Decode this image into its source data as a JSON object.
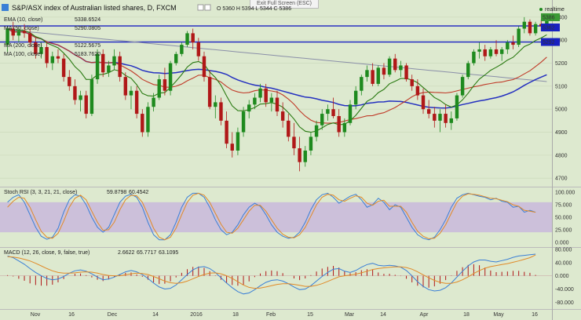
{
  "window": {
    "exit_fullscreen": "Exit Full Screen (ESC)",
    "realtime": "realtime"
  },
  "header": {
    "title": "S&P/ASX index of Australian listed shares, D, FXCM",
    "ohlc": "O 5360 H 5394 L 5344 C 5386"
  },
  "indicators": {
    "ema": {
      "label": "EMA (10, close)",
      "value": "5338.6524",
      "color": "#2a7a12"
    },
    "ma50": {
      "label": "MA (50, close)",
      "value": "5290.0805",
      "color": "#c03a28"
    },
    "ma200": {
      "label": "MA (200, close)",
      "value": "5122.5675",
      "color": "#8a8fa8"
    },
    "ma100": {
      "label": "MA (100, close)",
      "value": "5183.7620",
      "color": "#2430c0"
    }
  },
  "panes": {
    "rsi": {
      "label": "Stoch RSI (3, 3, 21, 21, close)",
      "k": "59.8798",
      "d": "60.4542"
    },
    "macd": {
      "label": "MACD (12, 26, close, 9, false, true)",
      "hist": "2.6622",
      "macd": "65.7717",
      "signal": "63.1095"
    }
  },
  "colors": {
    "up": "#1e8a1e",
    "down": "#b01818",
    "blue": "#3a7fd6",
    "orange": "#e08a28",
    "hline": "#1820c0"
  },
  "chart_data": [
    {
      "type": "candlestick",
      "title": "S&P/ASX index of Australian listed shares, D, FXCM",
      "x_ticks": [
        "Nov",
        "16",
        "Dec",
        "14",
        "2016",
        "18",
        "Feb",
        "15",
        "Mar",
        "14",
        "Apr",
        "18",
        "May",
        "16"
      ],
      "y_ticks": [
        4700,
        4800,
        4900,
        5000,
        5100,
        5200,
        5300,
        5400
      ],
      "ylim": [
        4670,
        5420
      ],
      "price_labels": [
        5386,
        5362,
        5292
      ],
      "candles": [
        [
          5280,
          5360,
          5250,
          5350
        ],
        [
          5350,
          5380,
          5300,
          5320
        ],
        [
          5320,
          5360,
          5290,
          5340
        ],
        [
          5340,
          5370,
          5310,
          5330
        ],
        [
          5330,
          5350,
          5270,
          5290
        ],
        [
          5290,
          5310,
          5220,
          5240
        ],
        [
          5240,
          5290,
          5220,
          5270
        ],
        [
          5270,
          5290,
          5180,
          5200
        ],
        [
          5200,
          5250,
          5170,
          5230
        ],
        [
          5230,
          5260,
          5200,
          5220
        ],
        [
          5220,
          5240,
          5120,
          5140
        ],
        [
          5140,
          5170,
          5080,
          5100
        ],
        [
          5100,
          5130,
          5020,
          5040
        ],
        [
          5040,
          5080,
          4990,
          5060
        ],
        [
          5060,
          5080,
          4960,
          4980
        ],
        [
          4980,
          5150,
          4970,
          5130
        ],
        [
          5130,
          5260,
          5110,
          5240
        ],
        [
          5240,
          5260,
          5140,
          5160
        ],
        [
          5160,
          5210,
          5140,
          5190
        ],
        [
          5190,
          5260,
          5170,
          5230
        ],
        [
          5230,
          5250,
          5120,
          5140
        ],
        [
          5140,
          5160,
          5040,
          5060
        ],
        [
          5060,
          5100,
          5000,
          5080
        ],
        [
          5080,
          5100,
          4960,
          4980
        ],
        [
          4980,
          5000,
          4880,
          4900
        ],
        [
          4900,
          5030,
          4880,
          5010
        ],
        [
          5010,
          5070,
          4990,
          5050
        ],
        [
          5050,
          5150,
          5040,
          5130
        ],
        [
          5130,
          5180,
          5060,
          5080
        ],
        [
          5080,
          5210,
          5060,
          5200
        ],
        [
          5200,
          5250,
          5190,
          5240
        ],
        [
          5240,
          5290,
          5230,
          5280
        ],
        [
          5280,
          5340,
          5270,
          5330
        ],
        [
          5330,
          5350,
          5260,
          5290
        ],
        [
          5290,
          5310,
          5210,
          5230
        ],
        [
          5230,
          5250,
          5120,
          5140
        ],
        [
          5140,
          5170,
          5000,
          5010
        ],
        [
          5010,
          5060,
          4960,
          5030
        ],
        [
          5030,
          5050,
          4930,
          4950
        ],
        [
          4950,
          4990,
          4830,
          4850
        ],
        [
          4850,
          4900,
          4790,
          4820
        ],
        [
          4820,
          4920,
          4800,
          4900
        ],
        [
          4900,
          5010,
          4880,
          4990
        ],
        [
          4990,
          5040,
          4960,
          5020
        ],
        [
          5020,
          5070,
          5000,
          5050
        ],
        [
          5050,
          5110,
          5030,
          5090
        ],
        [
          5090,
          5110,
          5010,
          5030
        ],
        [
          5030,
          5070,
          4990,
          5050
        ],
        [
          5050,
          5080,
          4970,
          4990
        ],
        [
          4990,
          5030,
          4920,
          4950
        ],
        [
          4950,
          4980,
          4860,
          4880
        ],
        [
          4880,
          4940,
          4800,
          4830
        ],
        [
          4830,
          4880,
          4730,
          4770
        ],
        [
          4770,
          4840,
          4750,
          4820
        ],
        [
          4820,
          4900,
          4800,
          4880
        ],
        [
          4880,
          4950,
          4860,
          4930
        ],
        [
          4930,
          5000,
          4910,
          4980
        ],
        [
          4980,
          5020,
          4950,
          5000
        ],
        [
          5000,
          5050,
          4960,
          4970
        ],
        [
          4970,
          5000,
          4880,
          4900
        ],
        [
          4900,
          4960,
          4880,
          4940
        ],
        [
          4940,
          5040,
          4930,
          5020
        ],
        [
          5020,
          5100,
          5000,
          5080
        ],
        [
          5080,
          5150,
          5060,
          5140
        ],
        [
          5140,
          5190,
          5120,
          5170
        ],
        [
          5170,
          5200,
          5100,
          5110
        ],
        [
          5110,
          5190,
          5100,
          5180
        ],
        [
          5180,
          5200,
          5130,
          5150
        ],
        [
          5150,
          5230,
          5140,
          5220
        ],
        [
          5220,
          5240,
          5160,
          5170
        ],
        [
          5170,
          5210,
          5140,
          5190
        ],
        [
          5190,
          5200,
          5120,
          5130
        ],
        [
          5130,
          5150,
          5080,
          5100
        ],
        [
          5100,
          5130,
          5040,
          5060
        ],
        [
          5060,
          5090,
          4980,
          5000
        ],
        [
          5000,
          5040,
          4960,
          4980
        ],
        [
          4980,
          5010,
          4920,
          4950
        ],
        [
          4950,
          5000,
          4900,
          4980
        ],
        [
          4980,
          5020,
          4920,
          4940
        ],
        [
          4940,
          4990,
          4910,
          4960
        ],
        [
          4960,
          5070,
          4950,
          5060
        ],
        [
          5060,
          5150,
          5050,
          5140
        ],
        [
          5140,
          5210,
          5130,
          5200
        ],
        [
          5200,
          5260,
          5190,
          5250
        ],
        [
          5250,
          5290,
          5220,
          5260
        ],
        [
          5260,
          5280,
          5210,
          5230
        ],
        [
          5230,
          5270,
          5220,
          5260
        ],
        [
          5260,
          5300,
          5230,
          5240
        ],
        [
          5240,
          5270,
          5210,
          5260
        ],
        [
          5260,
          5300,
          5240,
          5290
        ],
        [
          5290,
          5320,
          5260,
          5280
        ],
        [
          5280,
          5360,
          5270,
          5350
        ],
        [
          5350,
          5400,
          5330,
          5380
        ],
        [
          5380,
          5390,
          5320,
          5330
        ],
        [
          5330,
          5380,
          5320,
          5370
        ],
        [
          5370,
          5390,
          5340,
          5360
        ],
        [
          5360,
          5394,
          5344,
          5386
        ]
      ]
    },
    {
      "type": "line",
      "title": "Stoch RSI (3, 3, 21, 21, close)",
      "y_ticks": [
        0,
        25,
        50,
        75,
        100
      ],
      "ylim": [
        -8,
        108
      ],
      "band": [
        20,
        80
      ],
      "series": [
        {
          "name": "K",
          "values": [
            80,
            90,
            95,
            80,
            55,
            30,
            12,
            6,
            10,
            28,
            60,
            85,
            95,
            92,
            75,
            50,
            30,
            20,
            30,
            55,
            80,
            92,
            96,
            90,
            70,
            40,
            15,
            5,
            5,
            15,
            40,
            70,
            90,
            98,
            98,
            90,
            70,
            45,
            25,
            15,
            20,
            35,
            55,
            70,
            78,
            72,
            55,
            35,
            20,
            12,
            8,
            10,
            20,
            40,
            65,
            85,
            95,
            98,
            90,
            78,
            85,
            92,
            96,
            85,
            70,
            75,
            88,
            80,
            65,
            75,
            70,
            50,
            30,
            15,
            8,
            5,
            10,
            25,
            45,
            70,
            88,
            95,
            98,
            95,
            92,
            90,
            85,
            88,
            82,
            80,
            70,
            72,
            60,
            64,
            60
          ]
        },
        {
          "name": "D",
          "values": [
            70,
            82,
            90,
            88,
            70,
            45,
            22,
            10,
            8,
            18,
            42,
            70,
            88,
            94,
            85,
            62,
            40,
            24,
            25,
            40,
            65,
            85,
            94,
            93,
            80,
            55,
            28,
            10,
            5,
            10,
            28,
            55,
            80,
            94,
            98,
            94,
            80,
            58,
            36,
            20,
            18,
            28,
            45,
            62,
            74,
            74,
            62,
            45,
            28,
            16,
            10,
            9,
            15,
            30,
            52,
            75,
            90,
            96,
            94,
            85,
            82,
            88,
            93,
            90,
            78,
            74,
            82,
            84,
            72,
            72,
            72,
            60,
            40,
            22,
            12,
            7,
            8,
            18,
            35,
            58,
            80,
            92,
            97,
            96,
            94,
            91,
            88,
            87,
            84,
            81,
            75,
            72,
            64,
            62,
            60
          ]
        }
      ]
    },
    {
      "type": "line",
      "title": "MACD (12, 26, close, 9, false, true)",
      "y_ticks": [
        -80,
        -40,
        0,
        40,
        80
      ],
      "ylim": [
        -96,
        80
      ],
      "series": [
        {
          "name": "MACD",
          "values": [
            60,
            55,
            45,
            35,
            22,
            10,
            0,
            -8,
            -12,
            -10,
            -2,
            8,
            15,
            18,
            14,
            6,
            -4,
            -12,
            -10,
            -4,
            4,
            12,
            16,
            12,
            4,
            -8,
            -22,
            -34,
            -40,
            -38,
            -28,
            -12,
            4,
            18,
            26,
            28,
            22,
            10,
            -6,
            -22,
            -36,
            -48,
            -55,
            -52,
            -42,
            -30,
            -20,
            -14,
            -12,
            -16,
            -24,
            -34,
            -42,
            -40,
            -30,
            -16,
            -2,
            10,
            20,
            22,
            14,
            10,
            16,
            26,
            34,
            38,
            32,
            30,
            32,
            30,
            26,
            16,
            0,
            -18,
            -32,
            -42,
            -46,
            -44,
            -36,
            -22,
            -4,
            14,
            30,
            42,
            48,
            48,
            44,
            42,
            46,
            50,
            56,
            60,
            62,
            64,
            65.77
          ]
        },
        {
          "name": "Signal",
          "values": [
            58,
            57,
            54,
            50,
            45,
            38,
            30,
            22,
            15,
            10,
            8,
            8,
            9,
            11,
            12,
            11,
            8,
            4,
            1,
            0,
            0,
            3,
            6,
            8,
            7,
            4,
            -2,
            -9,
            -16,
            -21,
            -23,
            -21,
            -16,
            -9,
            -2,
            4,
            8,
            9,
            6,
            0,
            -8,
            -18,
            -28,
            -35,
            -38,
            -37,
            -34,
            -30,
            -26,
            -24,
            -24,
            -26,
            -29,
            -32,
            -32,
            -29,
            -24,
            -17,
            -10,
            -3,
            0,
            2,
            5,
            9,
            14,
            19,
            22,
            24,
            26,
            27,
            27,
            25,
            20,
            12,
            3,
            -6,
            -14,
            -20,
            -23,
            -23,
            -19,
            -12,
            -3,
            7,
            16,
            23,
            28,
            31,
            34,
            37,
            41,
            45,
            50,
            55,
            63.11
          ]
        },
        {
          "name": "Histogram",
          "values": [
            2,
            -2,
            -9,
            -15,
            -23,
            -28,
            -30,
            -30,
            -27,
            -20,
            -10,
            0,
            6,
            7,
            2,
            -5,
            -12,
            -16,
            -11,
            -4,
            4,
            9,
            10,
            4,
            -3,
            -12,
            -20,
            -25,
            -24,
            -17,
            -5,
            9,
            20,
            27,
            28,
            24,
            14,
            1,
            -12,
            -22,
            -28,
            -30,
            -27,
            -17,
            -4,
            7,
            14,
            16,
            14,
            8,
            0,
            -8,
            -13,
            -8,
            2,
            13,
            22,
            27,
            30,
            25,
            14,
            8,
            11,
            17,
            20,
            19,
            10,
            6,
            6,
            3,
            -1,
            -9,
            -20,
            -30,
            -35,
            -36,
            -32,
            -24,
            -13,
            1,
            15,
            26,
            33,
            35,
            32,
            25,
            16,
            11,
            12,
            13,
            15,
            15,
            12,
            9,
            2.66
          ]
        }
      ]
    }
  ]
}
